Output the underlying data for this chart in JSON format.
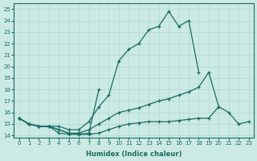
{
  "xlabel": "Humidex (Indice chaleur)",
  "bg_color": "#cceae4",
  "line_color": "#1a6b60",
  "grid_color": "#b0d8d0",
  "xlim": [
    -0.5,
    23.5
  ],
  "ylim": [
    13.8,
    25.5
  ],
  "xticks": [
    0,
    1,
    2,
    3,
    4,
    5,
    6,
    7,
    8,
    9,
    10,
    11,
    12,
    13,
    14,
    15,
    16,
    17,
    18,
    19,
    20,
    21,
    22,
    23
  ],
  "yticks": [
    14,
    15,
    16,
    17,
    18,
    19,
    20,
    21,
    22,
    23,
    24,
    25
  ],
  "lines": [
    {
      "segments": [
        {
          "x": [
            0,
            1,
            2,
            3,
            4,
            5,
            6,
            7,
            8,
            9,
            10,
            11,
            12,
            13,
            14,
            15,
            16,
            17,
            18
          ],
          "y": [
            15.5,
            15.0,
            14.8,
            14.8,
            14.8,
            14.5,
            14.5,
            15.2,
            16.5,
            17.5,
            20.5,
            21.5,
            22.0,
            23.2,
            23.5,
            24.8,
            23.5,
            24.0,
            19.5
          ]
        }
      ]
    },
    {
      "segments": [
        {
          "x": [
            0,
            1,
            2,
            3,
            4,
            5,
            6,
            7,
            8,
            9,
            10,
            11,
            12,
            13,
            14,
            15,
            16,
            17,
            18,
            19,
            20,
            21,
            22,
            23
          ],
          "y": [
            15.5,
            15.0,
            14.8,
            14.8,
            14.5,
            14.2,
            14.2,
            14.5,
            15.0,
            15.5,
            16.0,
            16.2,
            16.4,
            16.7,
            17.0,
            17.2,
            17.5,
            17.8,
            18.2,
            19.5,
            16.5,
            null,
            null,
            null
          ]
        }
      ]
    },
    {
      "segments": [
        {
          "x": [
            0,
            1,
            2,
            3,
            4,
            5,
            6,
            7,
            8
          ],
          "y": [
            15.5,
            15.0,
            14.8,
            14.8,
            14.5,
            14.2,
            14.1,
            14.2,
            18.0
          ]
        }
      ]
    },
    {
      "segments": [
        {
          "x": [
            0,
            1,
            2,
            3,
            4,
            5,
            6,
            7,
            8,
            9,
            10,
            11,
            12,
            13,
            14,
            15,
            16,
            17,
            18,
            19,
            20,
            21,
            22,
            23
          ],
          "y": [
            15.5,
            15.0,
            14.8,
            14.8,
            14.2,
            14.1,
            14.1,
            14.1,
            14.2,
            14.5,
            14.8,
            15.0,
            15.1,
            15.2,
            15.2,
            15.2,
            15.3,
            15.4,
            15.5,
            15.5,
            16.5,
            16.0,
            15.0,
            15.2
          ]
        }
      ]
    }
  ]
}
